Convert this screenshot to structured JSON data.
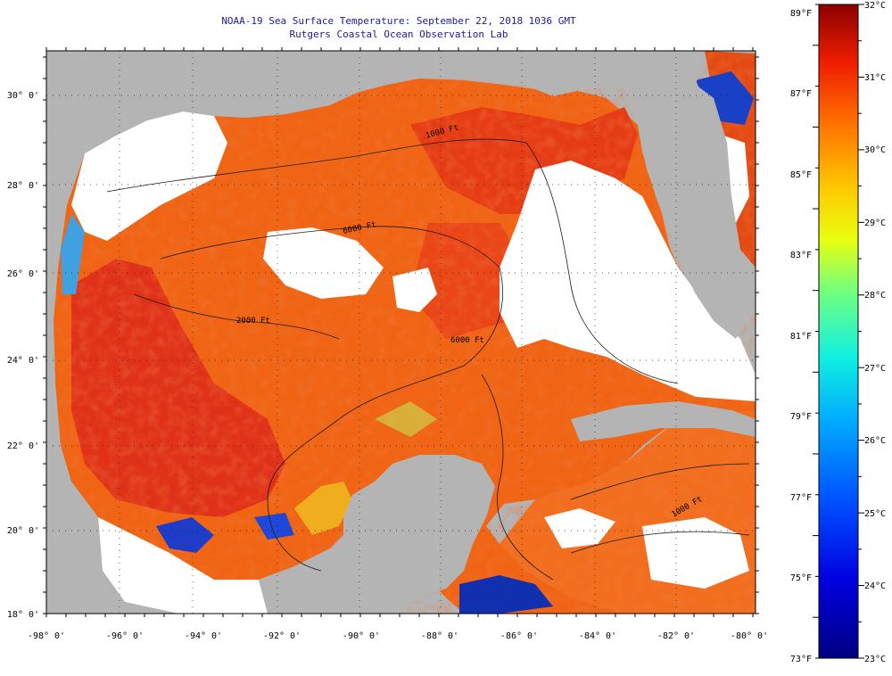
{
  "title": {
    "line1": "NOAA-19 Sea Surface Temperature:  September 22, 2018 1036 GMT",
    "line2": "Rutgers Coastal Ocean Observation Lab"
  },
  "map": {
    "lon_labels": [
      "-98° 0'",
      "-96° 0'",
      "-94° 0'",
      "-92° 0'",
      "-90° 0'",
      "-88° 0'",
      "-86° 0'",
      "-84° 0'",
      "-82° 0'",
      "-80° 0'"
    ],
    "lat_labels": [
      "18° 0'",
      "20° 0'",
      "22° 0'",
      "24° 0'",
      "26° 0'",
      "28° 0'",
      "30° 0'"
    ],
    "contour_labels": [
      "1000 Ft",
      "6000 Ft",
      "2000 Ft",
      "6000 Ft",
      "1000 Ft"
    ],
    "colors": {
      "land": "#b4b4b4",
      "cloud": "#ffffff",
      "sst_warm": "#f05a14",
      "sst_hot": "#e03214",
      "sst_cool": "#1e50d2"
    }
  },
  "colorbar": {
    "fahrenheit_labels": [
      "89°F",
      "87°F",
      "85°F",
      "83°F",
      "81°F",
      "79°F",
      "77°F",
      "75°F",
      "73°F"
    ],
    "celsius_labels": [
      "32°C",
      "31°C",
      "30°C",
      "29°C",
      "28°C",
      "27°C",
      "26°C",
      "25°C",
      "24°C",
      "23°C"
    ],
    "fahrenheit_range": [
      73,
      89
    ],
    "celsius_range": [
      23,
      32
    ]
  }
}
